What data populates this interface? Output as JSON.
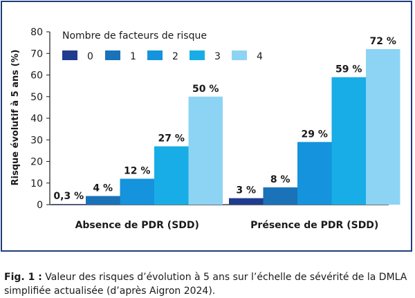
{
  "chart_data": {
    "type": "bar",
    "ylabel": "Risque évolutif à 5 ans (%)",
    "ylim": [
      0,
      80
    ],
    "yticks": [
      0,
      10,
      20,
      30,
      40,
      50,
      60,
      70,
      80
    ],
    "grid": false,
    "legend_title": "Nombre de facteurs de risque",
    "legend_position": "top",
    "categories": [
      "Absence de PDR (SDD)",
      "Présence de PDR (SDD)"
    ],
    "series": [
      {
        "name": "0",
        "values": [
          0.3,
          3
        ],
        "labels": [
          "0,3 %",
          "3 %"
        ]
      },
      {
        "name": "1",
        "values": [
          4,
          8
        ],
        "labels": [
          "4 %",
          "8 %"
        ]
      },
      {
        "name": "2",
        "values": [
          12,
          29
        ],
        "labels": [
          "12 %",
          "29 %"
        ]
      },
      {
        "name": "3",
        "values": [
          27,
          59
        ],
        "labels": [
          "27 %",
          "59 %"
        ]
      },
      {
        "name": "4",
        "values": [
          50,
          72
        ],
        "labels": [
          "50 %",
          "72 %"
        ]
      }
    ],
    "colors": [
      "#1f3c8e",
      "#1a72b8",
      "#1593dc",
      "#18ade6",
      "#8dd4f4"
    ]
  },
  "caption": {
    "label": "Fig. 1 :",
    "text": " Valeur des risques d’évolution à 5 ans sur l’échelle de sévérité de la DMLA simplifiée actualisée (d’après Aigron 2024)."
  }
}
